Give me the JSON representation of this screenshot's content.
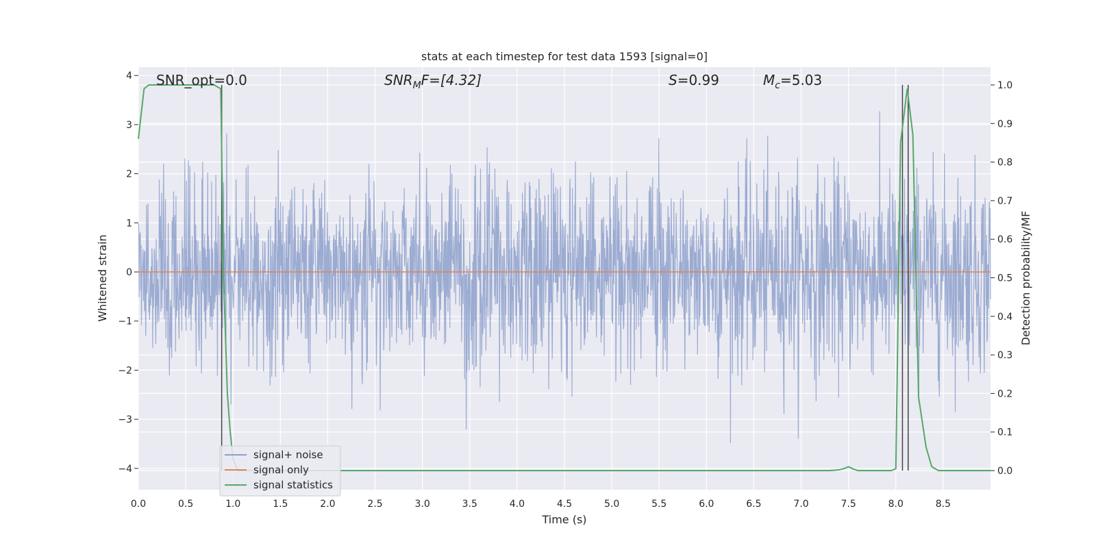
{
  "chart_data": {
    "type": "line",
    "title": "stats at each timestep for test data 1593 [signal=0]",
    "xlabel": "Time (s)",
    "ylabel": "Whitened strain",
    "ylabel_right": "Detection probability/MF",
    "xlim": [
      0.0,
      9.0
    ],
    "ylim": [
      -4.4,
      4.2
    ],
    "ylim_right": [
      -0.05,
      1.03
    ],
    "x_ticks": [
      "0.0",
      "0.5",
      "1.0",
      "1.5",
      "2.0",
      "2.5",
      "3.0",
      "3.5",
      "4.0",
      "4.5",
      "5.0",
      "5.5",
      "6.0",
      "6.5",
      "7.0",
      "7.5",
      "8.0",
      "8.5"
    ],
    "y_ticks": [
      "4",
      "3",
      "2",
      "1",
      "0",
      "−1",
      "−2",
      "−3",
      "−4"
    ],
    "y_ticks_right": [
      "1.0",
      "0.9",
      "0.8",
      "0.7",
      "0.6",
      "0.5",
      "0.4",
      "0.3",
      "0.2",
      "0.1",
      "0.0"
    ],
    "grid": true,
    "legend_position": "lower-left",
    "annotations": {
      "snr_opt": "SNR_opt=0.0",
      "snr_mf_base": "SNR",
      "snr_mf_sub": "M",
      "snr_mf_rest": "F=[4.32]",
      "s_italic": "S",
      "s_rest": "=0.99",
      "mc_base": "M",
      "mc_sub": "c",
      "mc_rest": "=5.03"
    },
    "series": [
      {
        "name": "signal+ noise",
        "color": "#8da0cb",
        "description_values": "whitened noise strain, roughly within [-4, 4]"
      },
      {
        "name": "signal only",
        "color": "#dd8452",
        "x": [
          0.0,
          9.0
        ],
        "y": [
          0.0,
          0.0
        ]
      },
      {
        "name": "signal statistics",
        "color": "#55a868",
        "axis": "right",
        "x": [
          0.0,
          0.06,
          0.11,
          0.2,
          0.4,
          0.6,
          0.8,
          0.87,
          0.9,
          0.94,
          0.97,
          1.0,
          1.05,
          2.0,
          4.0,
          6.0,
          7.3,
          7.4,
          7.45,
          7.5,
          7.55,
          7.6,
          7.8,
          7.95,
          8.0,
          8.05,
          8.12,
          8.18,
          8.24,
          8.32,
          8.38,
          8.45,
          9.0
        ],
        "y": [
          0.86,
          0.99,
          1.0,
          1.0,
          1.0,
          1.0,
          1.0,
          0.99,
          0.5,
          0.2,
          0.1,
          0.03,
          0.0,
          0.0,
          0.0,
          0.0,
          0.0,
          0.002,
          0.005,
          0.01,
          0.004,
          0.0,
          0.0,
          0.0,
          0.005,
          0.85,
          0.99,
          0.87,
          0.19,
          0.06,
          0.01,
          0.0,
          0.0
        ]
      }
    ],
    "vertical_lines": [
      {
        "x": 0.88,
        "color": "#444444"
      },
      {
        "x": 8.07,
        "color": "#444444"
      },
      {
        "x": 8.13,
        "color": "#444444"
      }
    ]
  }
}
